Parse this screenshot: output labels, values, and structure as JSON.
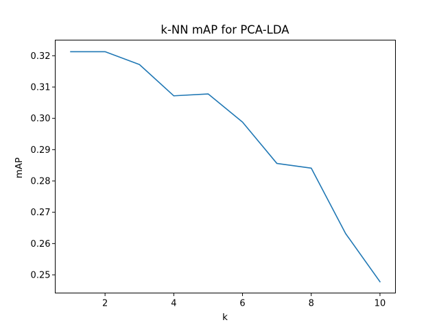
{
  "chart_data": {
    "type": "line",
    "title": "k-NN mAP for PCA-LDA",
    "xlabel": "k",
    "ylabel": "mAP",
    "x": [
      1,
      2,
      3,
      4,
      5,
      6,
      7,
      8,
      9,
      10
    ],
    "series": [
      {
        "values": [
          0.3213,
          0.3213,
          0.3172,
          0.3072,
          0.3078,
          0.2988,
          0.2856,
          0.2841,
          0.2632,
          0.2478
        ],
        "color": "#1f77b4"
      }
    ],
    "xlim": [
      0.55,
      10.45
    ],
    "ylim": [
      0.2442,
      0.325
    ],
    "xticks": [
      2,
      4,
      6,
      8,
      10
    ],
    "yticks": [
      0.25,
      0.26,
      0.27,
      0.28,
      0.29,
      0.3,
      0.31,
      0.32
    ],
    "xtick_labels": [
      "2",
      "4",
      "6",
      "8",
      "10"
    ],
    "ytick_labels": [
      "0.25",
      "0.26",
      "0.27",
      "0.28",
      "0.29",
      "0.30",
      "0.31",
      "0.32"
    ],
    "grid": false,
    "legend": "none"
  }
}
